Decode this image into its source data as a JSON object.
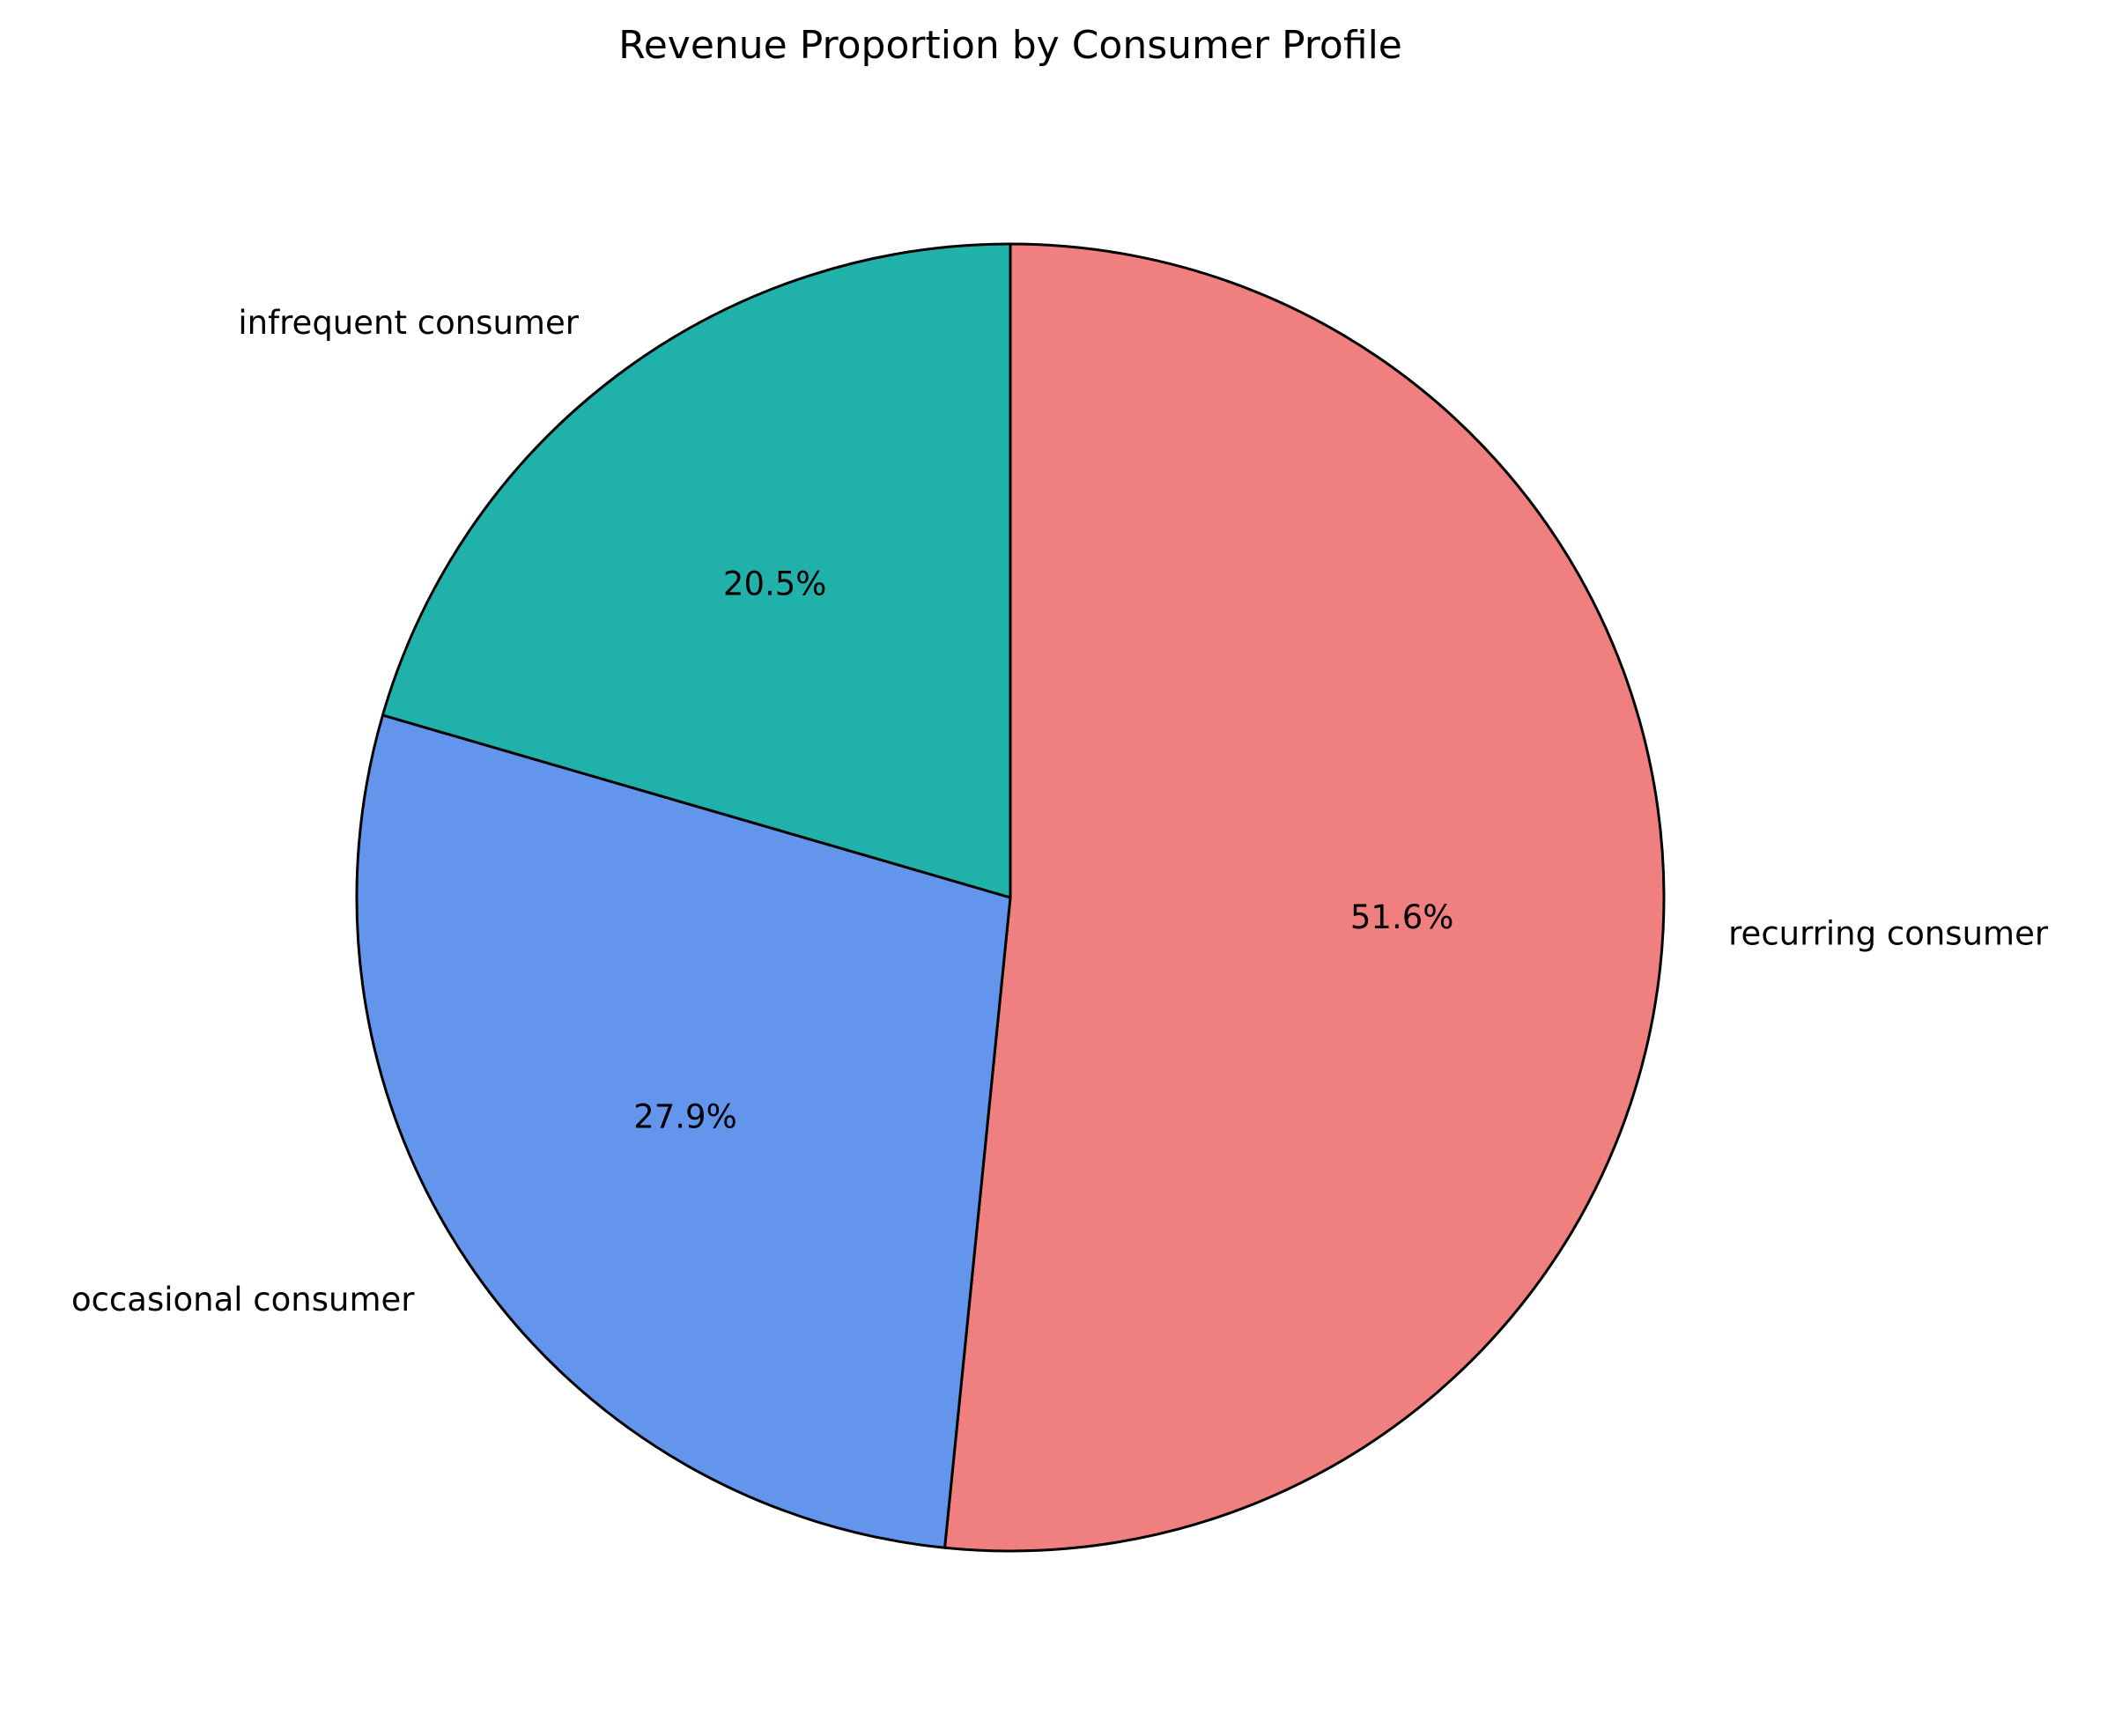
{
  "chart_data": {
    "type": "pie",
    "title": "Revenue Proportion by Consumer Profile",
    "start_angle_deg": 90,
    "direction": "clockwise",
    "slices": [
      {
        "label": "recurring consumer",
        "value": 51.6,
        "pct_label": "51.6%",
        "color": "#F08080"
      },
      {
        "label": "occasional consumer",
        "value": 27.9,
        "pct_label": "27.9%",
        "color": "#6495ED"
      },
      {
        "label": "infrequent consumer",
        "value": 20.5,
        "pct_label": "20.5%",
        "color": "#20B2AA"
      }
    ],
    "edge_color": "#000000"
  }
}
